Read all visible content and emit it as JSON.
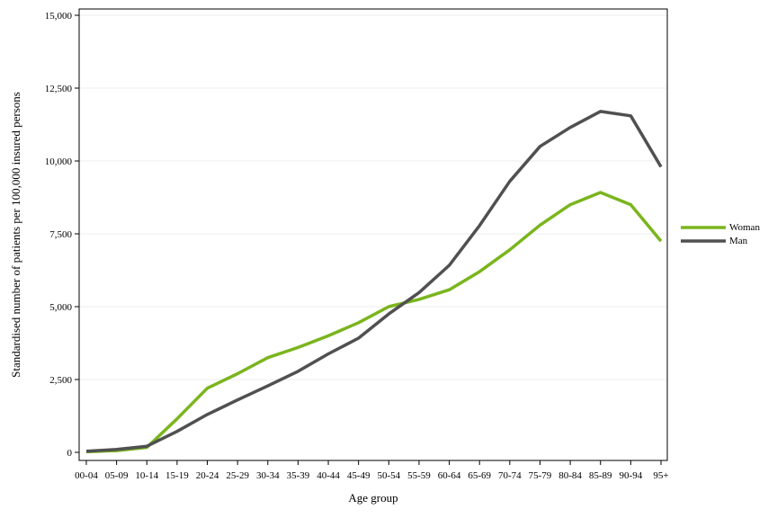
{
  "chart_data": {
    "type": "line",
    "title": "",
    "xlabel": "Age group",
    "ylabel": "Standardised number of patients per 100,000 insured persons",
    "ylim": [
      0,
      15000
    ],
    "yticks": [
      0,
      2500,
      5000,
      7500,
      10000,
      12500,
      15000
    ],
    "ytick_labels": [
      "0",
      "2,500",
      "5,000",
      "7,500",
      "10,000",
      "12,500",
      "15,000"
    ],
    "grid": true,
    "legend_position": "right",
    "categories": [
      "00-04",
      "05-09",
      "10-14",
      "15-19",
      "20-24",
      "25-29",
      "30-34",
      "35-39",
      "40-44",
      "45-49",
      "50-54",
      "55-59",
      "60-64",
      "65-69",
      "70-74",
      "75-79",
      "80-84",
      "85-89",
      "90-94",
      "95+"
    ],
    "series": [
      {
        "name": "Woman",
        "color": "#7ab51d",
        "values": [
          20,
          60,
          170,
          1150,
          2200,
          2700,
          3250,
          3600,
          4000,
          4450,
          5000,
          5250,
          5580,
          6200,
          6950,
          7800,
          8500,
          8920,
          8500,
          7250
        ]
      },
      {
        "name": "Man",
        "color": "#505050",
        "values": [
          40,
          100,
          210,
          720,
          1300,
          1800,
          2280,
          2780,
          3380,
          3920,
          4750,
          5480,
          6420,
          7780,
          9300,
          10500,
          11150,
          11700,
          11550,
          9800
        ]
      }
    ]
  }
}
